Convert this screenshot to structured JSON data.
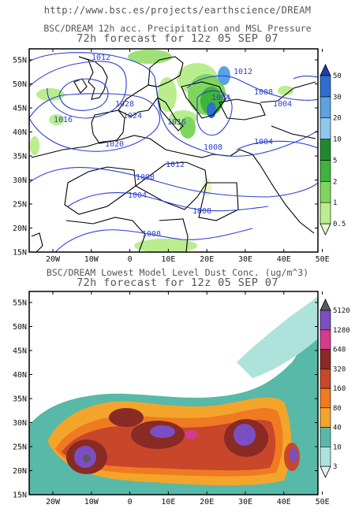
{
  "header": {
    "url": "http://www.bsc.es/projects/earthscience/DREAM"
  },
  "panels": [
    {
      "title": "BSC/DREAM 12h acc. Precipitation and MSL Pressure",
      "subtitle": "72h forecast for 12z 05 SEP 07",
      "colorbar": {
        "levels": [
          "0.5",
          "1",
          "2",
          "5",
          "10",
          "20",
          "30",
          "50"
        ],
        "colors": [
          "#e6f7c9",
          "#b9ed8e",
          "#7fd65e",
          "#3db43a",
          "#1e8a2c",
          "#8ec8ee",
          "#5aa3e0",
          "#2e6fd1",
          "#1b3fae"
        ]
      },
      "isobars": [
        "1012",
        "1028",
        "1024",
        "1016",
        "1020",
        "1016",
        "1012",
        "1008",
        "1004",
        "1008",
        "1004",
        "1008",
        "1012",
        "1008",
        "1004",
        "1004",
        "1008"
      ]
    },
    {
      "title": "BSC/DREAM Lowest Model Level Dust Conc. (ug/m^3)",
      "subtitle": "72h forecast for 12z 05 SEP 07",
      "colorbar": {
        "levels": [
          "3",
          "10",
          "40",
          "80",
          "160",
          "320",
          "640",
          "1280",
          "5120"
        ],
        "colors": [
          "#dff4ef",
          "#aee3dc",
          "#58b9a8",
          "#f2a52a",
          "#f07a22",
          "#c8472a",
          "#8a2a25",
          "#d63a8a",
          "#7b4fc3",
          "#5a5a5a"
        ]
      }
    }
  ],
  "axes": {
    "lat_labels": [
      "55N",
      "50N",
      "45N",
      "40N",
      "35N",
      "30N",
      "25N",
      "20N",
      "15N"
    ],
    "lon_labels": [
      "20W",
      "10W",
      "0",
      "10E",
      "20E",
      "30E",
      "40E",
      "50E"
    ]
  }
}
